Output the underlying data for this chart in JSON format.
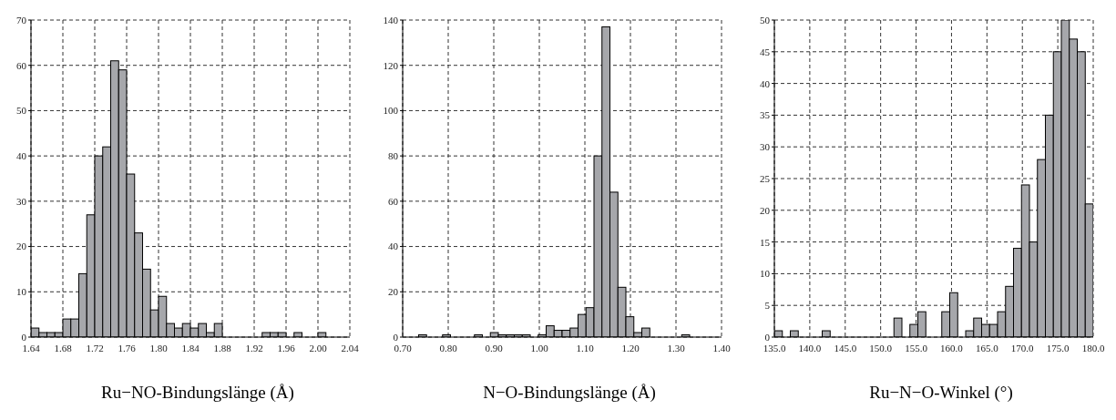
{
  "chart_data": [
    {
      "type": "histogram",
      "xlabel": "Ru−NO-Bindungslänge (Å)",
      "color": "#a6a7ab",
      "grid": true,
      "bins": [
        1.64,
        1.65,
        1.66,
        1.67,
        1.68,
        1.69,
        1.7,
        1.71,
        1.72,
        1.73,
        1.74,
        1.75,
        1.76,
        1.77,
        1.78,
        1.79,
        1.8,
        1.81,
        1.82,
        1.83,
        1.84,
        1.85,
        1.86,
        1.87,
        1.88,
        1.89,
        1.9,
        1.91,
        1.92,
        1.93,
        1.94,
        1.95,
        1.96,
        1.97,
        1.98,
        1.99,
        2.0,
        2.01,
        2.02,
        2.03,
        2.04
      ],
      "values": [
        2,
        1,
        1,
        1,
        4,
        4,
        14,
        27,
        40,
        42,
        61,
        59,
        36,
        23,
        15,
        6,
        9,
        3,
        2,
        3,
        2,
        3,
        1,
        3,
        0,
        0,
        0,
        0,
        0,
        1,
        1,
        1,
        0,
        1,
        0,
        0,
        1,
        0,
        0,
        0
      ],
      "xlim": [
        1.64,
        2.04
      ],
      "xticks": [
        1.64,
        1.68,
        1.72,
        1.76,
        {
          "value": 1.8,
          "label": "1.80"
        },
        1.84,
        1.88,
        1.92,
        1.96,
        {
          "value": 2,
          "label": "2.00"
        },
        2.04
      ],
      "ylim": [
        0,
        70
      ],
      "yticks": [
        0,
        10,
        20,
        30,
        40,
        50,
        60,
        70
      ]
    },
    {
      "type": "histogram",
      "xlabel": "N−O-Bindungslänge (Å)",
      "color": "#a6a7ab",
      "grid": true,
      "bins": [
        0.7,
        0.7175,
        0.735,
        0.7525,
        0.77,
        0.7875,
        0.805,
        0.8225,
        0.84,
        0.8575,
        0.875,
        0.8925,
        0.91,
        0.9275,
        0.945,
        0.9625,
        0.98,
        0.9975,
        1.015,
        1.0325,
        1.05,
        1.0675,
        1.085,
        1.1025,
        1.12,
        1.1375,
        1.155,
        1.1725,
        1.19,
        1.2075,
        1.225,
        1.2425,
        1.26,
        1.2775,
        1.295,
        1.3125,
        1.33,
        1.3475,
        1.365,
        1.3825,
        1.4
      ],
      "values": [
        0,
        0,
        1,
        0,
        0,
        1,
        0,
        0,
        0,
        1,
        0,
        2,
        1,
        1,
        1,
        1,
        0,
        1,
        5,
        3,
        3,
        4,
        10,
        13,
        80,
        137,
        64,
        22,
        9,
        2,
        4,
        0,
        0,
        0,
        0,
        1,
        0,
        0,
        0,
        0
      ],
      "xlim": [
        0.7,
        1.4
      ],
      "xticks": [
        {
          "value": 0.7,
          "label": "0.70"
        },
        {
          "value": 0.8,
          "label": "0.80"
        },
        {
          "value": 0.9,
          "label": "0.90"
        },
        {
          "value": 1,
          "label": "1.00"
        },
        {
          "value": 1.1,
          "label": "1.10"
        },
        {
          "value": 1.2,
          "label": "1.20"
        },
        {
          "value": 1.3,
          "label": "1.30"
        },
        {
          "value": 1.4,
          "label": "1.40"
        }
      ],
      "ylim": [
        0,
        140
      ],
      "yticks": [
        0,
        20,
        40,
        60,
        80,
        100,
        120,
        140
      ]
    },
    {
      "type": "histogram",
      "xlabel": "Ru−N−O-Winkel (°)",
      "color": "#a6a7ab",
      "grid": true,
      "bins": [
        135,
        136.125,
        137.25,
        138.375,
        139.5,
        140.625,
        141.75,
        142.875,
        144,
        145.125,
        146.25,
        147.375,
        148.5,
        149.625,
        150.75,
        151.875,
        153,
        154.125,
        155.25,
        156.375,
        157.5,
        158.625,
        159.75,
        160.875,
        162,
        163.125,
        164.25,
        165.375,
        166.5,
        167.625,
        168.75,
        169.875,
        171,
        172.125,
        173.25,
        174.375,
        175.5,
        176.625,
        177.75,
        178.875,
        180
      ],
      "values": [
        1,
        0,
        1,
        0,
        0,
        0,
        1,
        0,
        0,
        0,
        0,
        0,
        0,
        0,
        0,
        3,
        0,
        2,
        4,
        0,
        0,
        4,
        7,
        0,
        1,
        3,
        2,
        2,
        4,
        8,
        14,
        24,
        15,
        28,
        35,
        45,
        50,
        47,
        45,
        21
      ],
      "xlim": [
        135,
        180
      ],
      "xticks": [
        {
          "value": 135,
          "label": "135.0"
        },
        {
          "value": 140,
          "label": "140.0"
        },
        {
          "value": 145,
          "label": "145.0"
        },
        {
          "value": 150,
          "label": "150.0"
        },
        {
          "value": 155,
          "label": "155.0"
        },
        {
          "value": 160,
          "label": "160.0"
        },
        {
          "value": 165,
          "label": "165.0"
        },
        {
          "value": 170,
          "label": "170.0"
        },
        {
          "value": 175,
          "label": "175.0"
        },
        {
          "value": 180,
          "label": "180.0"
        }
      ],
      "ylim": [
        0,
        50
      ],
      "yticks": [
        0,
        5,
        10,
        15,
        20,
        25,
        30,
        35,
        40,
        45,
        50
      ]
    }
  ]
}
